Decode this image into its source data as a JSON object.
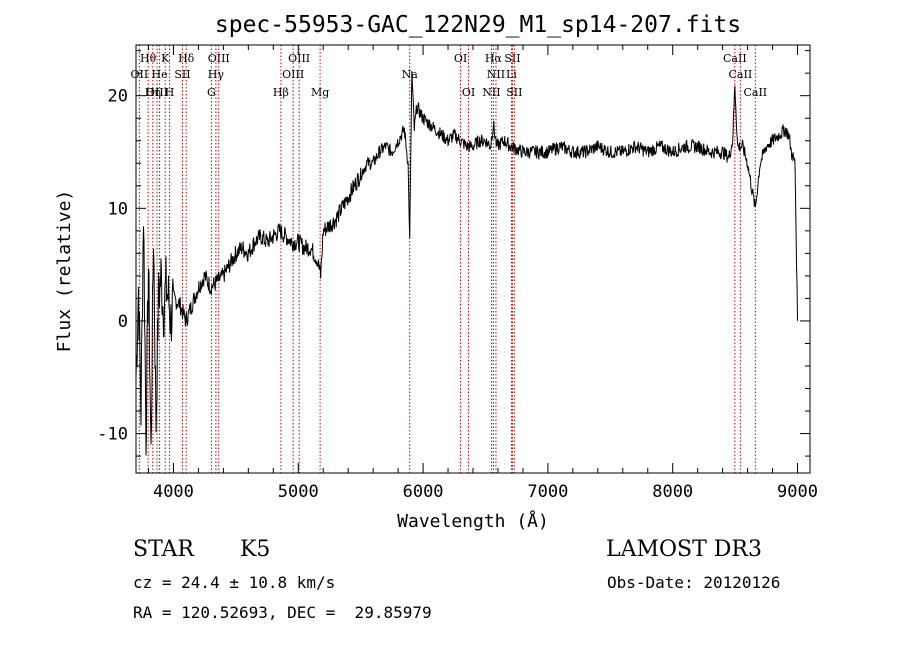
{
  "chart_data": {
    "type": "line",
    "title": "spec-55953-GAC_122N29_M1_sp14-207.fits",
    "xlabel": "Wavelength (Å)",
    "ylabel": "Flux (relative)",
    "xlim": [
      3700,
      9100
    ],
    "ylim": [
      -13.5,
      24.5
    ],
    "xticks": [
      4000,
      5000,
      6000,
      7000,
      8000,
      9000
    ],
    "yticks": [
      -10,
      0,
      10,
      20
    ],
    "grid": false,
    "series": [
      {
        "color": "#000000",
        "x": [
          3700,
          3720,
          3740,
          3760,
          3780,
          3800,
          3820,
          3840,
          3860,
          3880,
          3900,
          3920,
          3940,
          3960,
          3980,
          4000,
          4050,
          4100,
          4150,
          4200,
          4250,
          4300,
          4350,
          4400,
          4450,
          4500,
          4550,
          4600,
          4650,
          4700,
          4750,
          4800,
          4850,
          4900,
          4950,
          5000,
          5050,
          5100,
          5150,
          5180,
          5200,
          5250,
          5300,
          5350,
          5400,
          5450,
          5500,
          5550,
          5600,
          5650,
          5700,
          5750,
          5800,
          5850,
          5880,
          5893,
          5910,
          5930,
          5950,
          6000,
          6050,
          6100,
          6150,
          6200,
          6250,
          6300,
          6350,
          6400,
          6450,
          6500,
          6540,
          6563,
          6590,
          6650,
          6700,
          6800,
          6900,
          7000,
          7100,
          7200,
          7300,
          7400,
          7500,
          7600,
          7700,
          7800,
          7900,
          8000,
          8100,
          8200,
          8300,
          8400,
          8450,
          8480,
          8498,
          8520,
          8542,
          8560,
          8600,
          8630,
          8662,
          8700,
          8750,
          8800,
          8850,
          8900,
          8930,
          8950,
          8980,
          9000
        ],
        "y": [
          -5,
          3,
          -8,
          10,
          -10,
          5,
          -12,
          8,
          -9,
          2,
          4,
          1,
          3,
          2,
          0,
          2,
          1.5,
          0,
          1.5,
          3,
          4,
          3,
          3.5,
          4,
          5,
          6,
          6.5,
          6,
          7,
          7.5,
          7,
          7.5,
          8,
          7.5,
          7,
          7,
          6.5,
          6.5,
          5.5,
          4,
          8,
          8.5,
          9,
          10,
          11,
          12,
          13,
          14,
          14,
          15,
          15.5,
          15,
          16,
          17,
          14,
          7,
          22,
          17,
          19,
          18,
          17.5,
          17,
          16.5,
          16,
          16.5,
          16,
          15.5,
          15.5,
          16,
          16,
          15.5,
          17.5,
          15.5,
          16,
          15.5,
          15,
          15,
          15,
          15.5,
          15,
          15,
          15.5,
          15,
          15,
          15.5,
          15,
          15.5,
          15,
          15.5,
          15.5,
          15,
          15,
          14.5,
          16,
          21,
          15.5,
          15.5,
          15.5,
          14,
          12,
          10,
          14,
          15.5,
          16,
          16.5,
          17,
          16.5,
          15,
          14,
          0
        ]
      }
    ],
    "lines": [
      {
        "label": "Hθ",
        "x": 3797,
        "row": 0
      },
      {
        "label": "OII",
        "x": 3727,
        "row": 1
      },
      {
        "label": "OIII",
        "x": 3869,
        "row": 2
      },
      {
        "label": "Hη",
        "x": 3835,
        "row": 2
      },
      {
        "label": "He",
        "x": 3889,
        "row": 1
      },
      {
        "label": "K",
        "x": 3934,
        "row": 0
      },
      {
        "label": "H",
        "x": 3969,
        "row": 2
      },
      {
        "label": "SII",
        "x": 4072,
        "row": 1
      },
      {
        "label": "Hδ",
        "x": 4102,
        "row": 0
      },
      {
        "label": "OIII",
        "x": 4363,
        "row": 0
      },
      {
        "label": "Hγ",
        "x": 4340,
        "row": 1
      },
      {
        "label": "G",
        "x": 4304,
        "row": 2
      },
      {
        "label": "Hβ",
        "x": 4861,
        "row": 2
      },
      {
        "label": "OIII",
        "x": 5007,
        "row": 0
      },
      {
        "label": "OIII",
        "x": 4959,
        "row": 1
      },
      {
        "label": "Mg",
        "x": 5175,
        "row": 2
      },
      {
        "label": "Na",
        "x": 5893,
        "row": 1
      },
      {
        "label": "OI",
        "x": 6300,
        "row": 0
      },
      {
        "label": "OI",
        "x": 6364,
        "row": 2
      },
      {
        "label": "Hα",
        "x": 6563,
        "row": 0
      },
      {
        "label": "SII",
        "x": 6716,
        "row": 0
      },
      {
        "label": "NII",
        "x": 6584,
        "row": 1
      },
      {
        "label": "Li",
        "x": 6708,
        "row": 1
      },
      {
        "label": "NII",
        "x": 6548,
        "row": 2
      },
      {
        "label": "SII",
        "x": 6731,
        "row": 2
      },
      {
        "label": "CaII",
        "x": 8498,
        "row": 0
      },
      {
        "label": "CaII",
        "x": 8542,
        "row": 1
      },
      {
        "label": "CaII",
        "x": 8662,
        "row": 2
      }
    ]
  },
  "info": {
    "class": "STAR",
    "subclass": "K5",
    "survey": "LAMOST DR3",
    "redshift": "cz = 24.4 ± 10.8 km/s",
    "obsdate": "Obs-Date: 20120126",
    "coords": "RA = 120.52693, DEC =  29.85979"
  }
}
